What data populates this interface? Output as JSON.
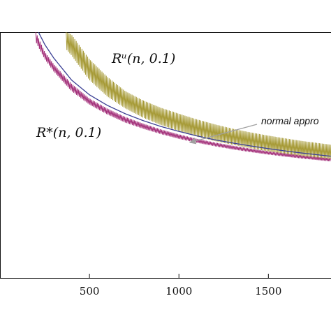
{
  "colors": {
    "upper_series": "#a69a36",
    "exact_series": "#a3307a",
    "normal_series": "#3a3f94",
    "axis": "#111111",
    "annotation_arrow": "#a0a0a0"
  },
  "chart_data": {
    "type": "line",
    "title": "",
    "xlabel": "",
    "ylabel": "",
    "xlim": [
      0,
      1850
    ],
    "ylim": [
      0,
      1
    ],
    "grid": false,
    "legend": "none",
    "x_ticks": [
      500,
      1000,
      1500
    ],
    "tick_labels": [
      "500",
      "1000",
      "1500"
    ],
    "series_labels": {
      "upper": "Rᵘ(n, 0.1)",
      "exact": "R*(n, 0.1)"
    },
    "annotation": {
      "text": "normal appro",
      "points_to_x": 1000
    },
    "series": [
      {
        "key": "upper",
        "style": "oscillating-band",
        "x": [
          370,
          400,
          500,
          600,
          700,
          800,
          900,
          1000,
          1100,
          1200,
          1300,
          1400,
          1500,
          1600,
          1700,
          1850
        ],
        "low": [
          0.93,
          0.905,
          0.805,
          0.738,
          0.69,
          0.652,
          0.622,
          0.598,
          0.575,
          0.557,
          0.542,
          0.528,
          0.515,
          0.503,
          0.493,
          0.48
        ],
        "high": [
          1.0,
          0.99,
          0.89,
          0.818,
          0.76,
          0.722,
          0.692,
          0.668,
          0.645,
          0.625,
          0.607,
          0.592,
          0.579,
          0.567,
          0.556,
          0.542
        ]
      },
      {
        "key": "exact",
        "style": "oscillating-band",
        "x": [
          200,
          250,
          300,
          400,
          500,
          600,
          700,
          800,
          900,
          1000,
          1100,
          1200,
          1300,
          1400,
          1500,
          1600,
          1700,
          1850
        ],
        "low": [
          0.96,
          0.89,
          0.84,
          0.76,
          0.705,
          0.665,
          0.632,
          0.607,
          0.585,
          0.566,
          0.55,
          0.536,
          0.523,
          0.512,
          0.502,
          0.493,
          0.485,
          0.474
        ],
        "high": [
          1.0,
          0.92,
          0.87,
          0.79,
          0.73,
          0.689,
          0.655,
          0.628,
          0.604,
          0.584,
          0.566,
          0.551,
          0.538,
          0.526,
          0.515,
          0.506,
          0.497,
          0.486
        ]
      },
      {
        "key": "normal",
        "style": "line",
        "x": [
          215,
          250,
          300,
          400,
          500,
          600,
          700,
          800,
          900,
          1000,
          1100,
          1200,
          1300,
          1400,
          1500,
          1600,
          1700,
          1850
        ],
        "y": [
          1.0,
          0.95,
          0.895,
          0.805,
          0.745,
          0.702,
          0.668,
          0.64,
          0.616,
          0.596,
          0.578,
          0.562,
          0.549,
          0.537,
          0.526,
          0.516,
          0.507,
          0.495
        ]
      }
    ]
  }
}
